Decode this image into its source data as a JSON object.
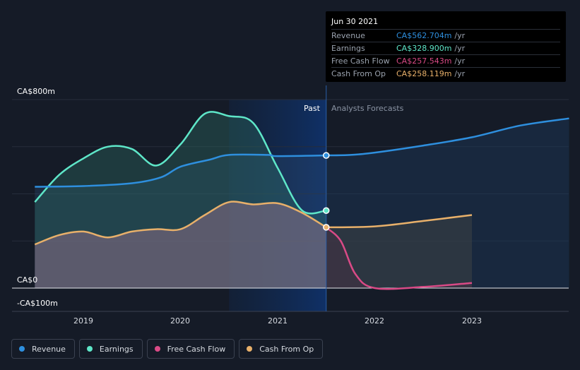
{
  "chart_data": {
    "type": "area",
    "yunit": "CA$ millions",
    "ylim": [
      -100,
      800
    ],
    "y_tick_labels": [
      "CA$800m",
      "CA$0",
      "-CA$100m"
    ],
    "x_ticks": [
      2019,
      2020,
      2021,
      2022,
      2023
    ],
    "x_tick_labels": [
      "2019",
      "2020",
      "2021",
      "2022",
      "2023"
    ],
    "past_label": "Past",
    "forecast_label": "Analysts Forecasts",
    "past_end_x": 2021.5,
    "series": [
      {
        "name": "Revenue",
        "color": "#2e8fde",
        "points": [
          [
            2018.5,
            430
          ],
          [
            2019.0,
            433
          ],
          [
            2019.5,
            445
          ],
          [
            2019.8,
            470
          ],
          [
            2020.0,
            515
          ],
          [
            2020.3,
            545
          ],
          [
            2020.5,
            565
          ],
          [
            2020.9,
            565
          ],
          [
            2021.0,
            560
          ],
          [
            2021.5,
            563
          ]
        ],
        "forecast": [
          [
            2021.5,
            563
          ],
          [
            2021.75,
            565
          ],
          [
            2022.0,
            575
          ],
          [
            2022.5,
            605
          ],
          [
            2023.0,
            640
          ],
          [
            2023.5,
            690
          ],
          [
            2024.0,
            720
          ]
        ]
      },
      {
        "name": "Earnings",
        "color": "#5ee6c8",
        "points": [
          [
            2018.5,
            365
          ],
          [
            2018.75,
            480
          ],
          [
            2019.0,
            550
          ],
          [
            2019.25,
            600
          ],
          [
            2019.5,
            590
          ],
          [
            2019.75,
            520
          ],
          [
            2020.0,
            610
          ],
          [
            2020.25,
            740
          ],
          [
            2020.5,
            730
          ],
          [
            2020.75,
            700
          ],
          [
            2021.0,
            510
          ],
          [
            2021.25,
            330
          ],
          [
            2021.5,
            329
          ]
        ]
      },
      {
        "name": "Free Cash Flow",
        "color": "#d94a86",
        "points": [
          [
            2021.5,
            257
          ],
          [
            2021.65,
            200
          ],
          [
            2021.8,
            60
          ],
          [
            2022.0,
            0
          ],
          [
            2022.5,
            5
          ],
          [
            2023.0,
            22
          ]
        ]
      },
      {
        "name": "Cash From Op",
        "color": "#e8b06a",
        "points": [
          [
            2018.5,
            185
          ],
          [
            2018.75,
            225
          ],
          [
            2019.0,
            240
          ],
          [
            2019.25,
            215
          ],
          [
            2019.5,
            240
          ],
          [
            2019.75,
            250
          ],
          [
            2020.0,
            250
          ],
          [
            2020.25,
            310
          ],
          [
            2020.5,
            365
          ],
          [
            2020.75,
            355
          ],
          [
            2021.0,
            360
          ],
          [
            2021.25,
            320
          ],
          [
            2021.5,
            258
          ]
        ],
        "forecast": [
          [
            2021.5,
            258
          ],
          [
            2022.0,
            262
          ],
          [
            2022.5,
            285
          ],
          [
            2023.0,
            310
          ]
        ]
      }
    ]
  },
  "tooltip": {
    "date": "Jun 30 2021",
    "unit": "/yr",
    "rows": [
      {
        "name": "Revenue",
        "value": "CA$562.704m",
        "color": "#2e8fde"
      },
      {
        "name": "Earnings",
        "value": "CA$328.900m",
        "color": "#5ee6c8"
      },
      {
        "name": "Free Cash Flow",
        "value": "CA$257.543m",
        "color": "#d94a86"
      },
      {
        "name": "Cash From Op",
        "value": "CA$258.119m",
        "color": "#e8b06a"
      }
    ]
  },
  "legend": [
    {
      "label": "Revenue",
      "color": "#2e8fde"
    },
    {
      "label": "Earnings",
      "color": "#5ee6c8"
    },
    {
      "label": "Free Cash Flow",
      "color": "#d94a86"
    },
    {
      "label": "Cash From Op",
      "color": "#e8b06a"
    }
  ]
}
